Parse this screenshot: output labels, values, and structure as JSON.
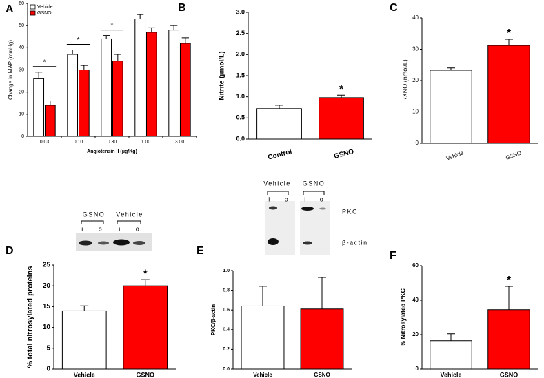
{
  "chart_data": [
    {
      "type": "bar",
      "panel": "A",
      "ylabel": "Change in MAP (mmHg)",
      "xlabel": "Angiotensin II (μg/Kg)",
      "categories": [
        "0.03",
        "0.10",
        "0.30",
        "1.00",
        "3.00"
      ],
      "series": [
        {
          "name": "Vehicle",
          "color": "#ffffff",
          "values": [
            26,
            37,
            44,
            53,
            48
          ],
          "errors": [
            3,
            2,
            1.5,
            2,
            2
          ]
        },
        {
          "name": "GSNO",
          "color": "#ff0000",
          "values": [
            14,
            30,
            34,
            47,
            42
          ],
          "errors": [
            2,
            2,
            3,
            2,
            2.5
          ]
        }
      ],
      "markers": [
        "*",
        "*",
        "*",
        null,
        null
      ],
      "ylim": [
        0,
        60
      ],
      "yticks": [
        0,
        10,
        20,
        30,
        40,
        50,
        60
      ],
      "legend": "top-left"
    },
    {
      "type": "bar",
      "panel": "B",
      "ylabel": "Nitrite (μmol/L)",
      "categories": [
        "Control",
        "GSNO"
      ],
      "values": [
        0.72,
        0.98
      ],
      "errors": [
        0.08,
        0.06
      ],
      "colors": [
        "#ffffff",
        "#ff0000"
      ],
      "markers": [
        null,
        "*"
      ],
      "ylim": [
        0,
        3.0
      ],
      "yticks": [
        {
          "value": 0,
          "label": "0.0"
        },
        0.5,
        {
          "value": 1,
          "label": "1.0"
        },
        1.5,
        {
          "value": 2,
          "label": "2.0"
        },
        2.5,
        {
          "value": 3,
          "label": "3.0"
        }
      ]
    },
    {
      "type": "bar",
      "panel": "C",
      "ylabel": "RXNO (nmol/L)",
      "categories": [
        "Vehicle",
        "GSNO"
      ],
      "values": [
        23.3,
        31.2
      ],
      "errors": [
        0.7,
        2
      ],
      "colors": [
        "#ffffff",
        "#ff0000"
      ],
      "markers": [
        null,
        "*"
      ],
      "ylim": [
        0,
        40
      ],
      "yticks": [
        0,
        10,
        20,
        30,
        40
      ]
    },
    {
      "type": "bar",
      "panel": "D",
      "ylabel": "% total nitrosylated proteins",
      "categories": [
        "Vehicle",
        "GSNO"
      ],
      "values": [
        14,
        20
      ],
      "errors": [
        1.2,
        1.5
      ],
      "colors": [
        "#ffffff",
        "#ff0000"
      ],
      "markers": [
        null,
        "*"
      ],
      "ylim": [
        0,
        25
      ],
      "yticks": [
        0,
        5,
        10,
        15,
        20,
        25
      ]
    },
    {
      "type": "bar",
      "panel": "E",
      "ylabel": "PKC/β-actin",
      "categories": [
        "Vehicle",
        "GSNO"
      ],
      "values": [
        0.64,
        0.61
      ],
      "errors": [
        0.2,
        0.32
      ],
      "colors": [
        "#ffffff",
        "#ff0000"
      ],
      "ylim": [
        0,
        1.0
      ],
      "yticks": [
        {
          "value": 0,
          "label": "0.0"
        },
        0.2,
        0.4,
        0.6,
        0.8,
        {
          "value": 1,
          "label": "1.0"
        }
      ]
    },
    {
      "type": "bar",
      "panel": "F",
      "ylabel": "% Nitrosylated PKC",
      "categories": [
        "Vehicle",
        "GSNO"
      ],
      "values": [
        16.5,
        34.5
      ],
      "errors": [
        4,
        13.5
      ],
      "colors": [
        "#ffffff",
        "#ff0000"
      ],
      "markers": [
        null,
        "*"
      ],
      "ylim": [
        0,
        60
      ],
      "yticks": [
        0,
        20,
        40,
        60
      ]
    }
  ],
  "blots": [
    {
      "groups": [
        {
          "name": "GSNO",
          "lanes": [
            "i",
            "o"
          ]
        },
        {
          "name": "Vehicle",
          "lanes": [
            "i",
            "o"
          ]
        }
      ]
    },
    {
      "groups": [
        {
          "name": "Vehicle",
          "lanes": [
            "i",
            "o"
          ]
        },
        {
          "name": "GSNO",
          "lanes": [
            "i",
            "o"
          ]
        }
      ],
      "bands": [
        "PKC",
        "β-actin"
      ]
    }
  ]
}
